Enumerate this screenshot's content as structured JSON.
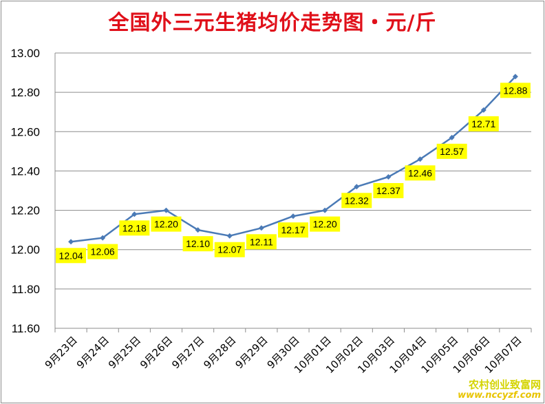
{
  "chart_data": {
    "type": "line",
    "title": "全国外三元生猪均价走势图・元/斤",
    "categories": [
      "9月23日",
      "9月24日",
      "9月25日",
      "9月26日",
      "9月27日",
      "9月28日",
      "9月29日",
      "9月30日",
      "10月01日",
      "10月02日",
      "10月03日",
      "10月04日",
      "10月05日",
      "10月06日",
      "10月07日"
    ],
    "values": [
      12.04,
      12.06,
      12.18,
      12.2,
      12.1,
      12.07,
      12.11,
      12.17,
      12.2,
      12.32,
      12.37,
      12.46,
      12.57,
      12.71,
      12.88
    ],
    "data_labels": [
      "12.04",
      "12.06",
      "12.18",
      "12.20",
      "12.10",
      "12.07",
      "12.11",
      "12.17",
      "12.20",
      "12.32",
      "12.37",
      "12.46",
      "12.57",
      "12.71",
      "12.88"
    ],
    "ylim": [
      11.6,
      13.0
    ],
    "yticks": [
      "11.60",
      "11.80",
      "12.00",
      "12.20",
      "12.40",
      "12.60",
      "12.80",
      "13.00"
    ],
    "grid": true,
    "legend": "none",
    "xlabel": "",
    "ylabel": "",
    "colors": {
      "line": "#4a7ab6",
      "label_bg": "#ffff00",
      "title": "#e0101a",
      "grid": "#8c8c8c"
    }
  },
  "watermark": {
    "line1": "农村创业致富网",
    "line2": "www.nccyzf.com"
  }
}
